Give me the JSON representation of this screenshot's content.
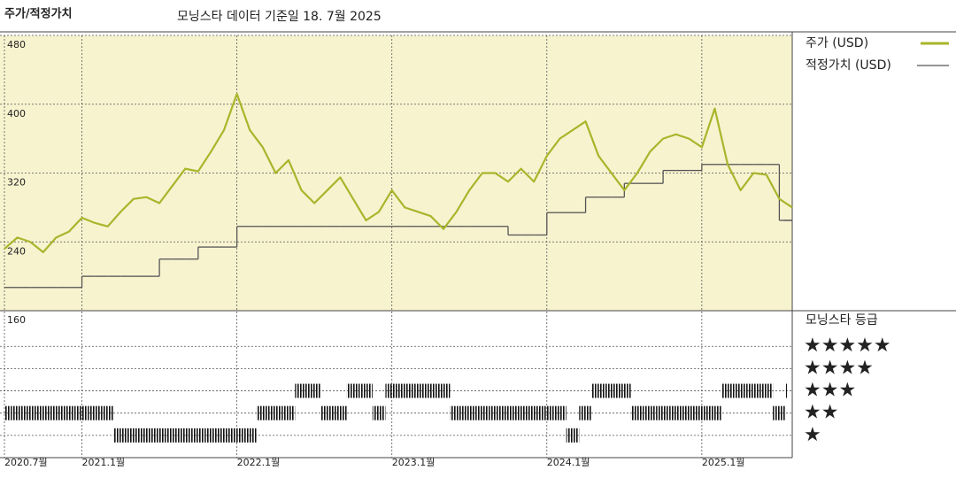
{
  "chart_data": [
    {
      "type": "line",
      "title": "주가/적정가치",
      "subtitle": "모닝스타 데이터 기준일 18. 7월 2025",
      "x": [
        "2020-07",
        "2020-08",
        "2020-09",
        "2020-10",
        "2020-11",
        "2020-12",
        "2021-01",
        "2021-02",
        "2021-03",
        "2021-04",
        "2021-05",
        "2021-06",
        "2021-07",
        "2021-08",
        "2021-09",
        "2021-10",
        "2021-11",
        "2021-12",
        "2022-01",
        "2022-02",
        "2022-03",
        "2022-04",
        "2022-05",
        "2022-06",
        "2022-07",
        "2022-08",
        "2022-09",
        "2022-10",
        "2022-11",
        "2022-12",
        "2023-01",
        "2023-02",
        "2023-03",
        "2023-04",
        "2023-05",
        "2023-06",
        "2023-07",
        "2023-08",
        "2023-09",
        "2023-10",
        "2023-11",
        "2023-12",
        "2024-01",
        "2024-02",
        "2024-03",
        "2024-04",
        "2024-05",
        "2024-06",
        "2024-07",
        "2024-08",
        "2024-09",
        "2024-10",
        "2024-11",
        "2024-12",
        "2025-01",
        "2025-02",
        "2025-03",
        "2025-04",
        "2025-05",
        "2025-06",
        "2025-07",
        "2025-08"
      ],
      "series": [
        {
          "name": "주가 (USD)",
          "color": "#a9b52b",
          "style": "line",
          "values": [
            232,
            245,
            240,
            228,
            245,
            252,
            268,
            262,
            258,
            275,
            290,
            292,
            285,
            305,
            325,
            322,
            345,
            370,
            412,
            370,
            350,
            320,
            335,
            300,
            285,
            300,
            315,
            290,
            265,
            275,
            300,
            280,
            275,
            270,
            255,
            275,
            300,
            320,
            320,
            310,
            325,
            310,
            340,
            360,
            370,
            380,
            340,
            320,
            300,
            320,
            345,
            360,
            365,
            360,
            350,
            395,
            330,
            300,
            320,
            318,
            290,
            280
          ]
        },
        {
          "name": "적정가치 (USD)",
          "color": "#555555",
          "style": "step",
          "values": [
            187,
            187,
            187,
            187,
            187,
            187,
            200,
            200,
            200,
            200,
            200,
            200,
            220,
            220,
            220,
            234,
            234,
            234,
            258,
            258,
            258,
            258,
            258,
            258,
            258,
            258,
            258,
            258,
            258,
            258,
            258,
            258,
            258,
            258,
            258,
            258,
            258,
            258,
            258,
            248,
            248,
            248,
            274,
            274,
            274,
            292,
            292,
            292,
            308,
            308,
            308,
            323,
            323,
            323,
            330,
            330,
            330,
            330,
            330,
            330,
            265,
            265
          ]
        }
      ],
      "xlim": [
        "2020-07",
        "2025-08"
      ],
      "ylim": [
        160,
        480
      ],
      "yticks": [
        160,
        240,
        320,
        400,
        480
      ],
      "background": "#f7f3cf",
      "grid": true
    },
    {
      "type": "rating",
      "title": "모닝스타 등급",
      "x": [
        "2020-07",
        "2020-08",
        "2020-09",
        "2020-10",
        "2020-11",
        "2020-12",
        "2021-01",
        "2021-02",
        "2021-03",
        "2021-04",
        "2021-05",
        "2021-06",
        "2021-07",
        "2021-08",
        "2021-09",
        "2021-10",
        "2021-11",
        "2021-12",
        "2022-01",
        "2022-02",
        "2022-03",
        "2022-04",
        "2022-05",
        "2022-06",
        "2022-07",
        "2022-08",
        "2022-09",
        "2022-10",
        "2022-11",
        "2022-12",
        "2023-01",
        "2023-02",
        "2023-03",
        "2023-04",
        "2023-05",
        "2023-06",
        "2023-07",
        "2023-08",
        "2023-09",
        "2023-10",
        "2023-11",
        "2023-12",
        "2024-01",
        "2024-02",
        "2024-03",
        "2024-04",
        "2024-05",
        "2024-06",
        "2024-07",
        "2024-08",
        "2024-09",
        "2024-10",
        "2024-11",
        "2024-12",
        "2025-01",
        "2025-02",
        "2025-03",
        "2025-04",
        "2025-05",
        "2025-06",
        "2025-07",
        "2025-08"
      ],
      "values": [
        2,
        2,
        2,
        2,
        2,
        2,
        2,
        2,
        2,
        1,
        1,
        1,
        1,
        1,
        1,
        1,
        1,
        1,
        1,
        1,
        2,
        2,
        2,
        3,
        3,
        2,
        2,
        3,
        3,
        2,
        3,
        3,
        3,
        3,
        3,
        2,
        2,
        2,
        2,
        2,
        2,
        2,
        2,
        2,
        1,
        2,
        3,
        3,
        3,
        2,
        2,
        2,
        2,
        2,
        2,
        2,
        3,
        3,
        3,
        3,
        2,
        3
      ],
      "xlim": [
        "2020-07",
        "2025-08"
      ],
      "xticks": [
        {
          "value": "2020-07",
          "label": "2020.7월"
        },
        {
          "value": "2021-01",
          "label": "2021.1월"
        },
        {
          "value": "2022-01",
          "label": "2022.1월"
        },
        {
          "value": "2023-01",
          "label": "2023.1월"
        },
        {
          "value": "2024-01",
          "label": "2024.1월"
        },
        {
          "value": "2025-01",
          "label": "2025.1월"
        }
      ],
      "ylim": [
        0,
        6.6
      ],
      "yticks": [
        {
          "value": 5,
          "label": "★★★★★"
        },
        {
          "value": 4,
          "label": "★★★★"
        },
        {
          "value": 3,
          "label": "★★★"
        },
        {
          "value": 2,
          "label": "★★"
        },
        {
          "value": 1,
          "label": "★"
        }
      ],
      "color": "#111111",
      "grid": true
    }
  ]
}
